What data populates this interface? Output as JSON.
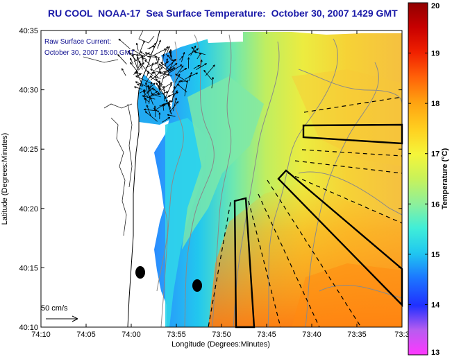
{
  "title": "RU COOL  NOAA-17  Sea Surface Temperature:  October 30, 2007 1429 GMT",
  "annotation": {
    "line1": "Raw Surface Current:",
    "line2": "October 30, 2007 15:00 GMT",
    "scale_label": "50 cm/s"
  },
  "axes": {
    "xlabel": "Longitude (Degrees:Minutes)",
    "ylabel": "Latitude (Degrees:Minutes)",
    "x_ticks": [
      "74:10",
      "74:05",
      "74:00",
      "73:55",
      "73:50",
      "73:45",
      "73:40",
      "73:35",
      "73:3"
    ],
    "y_ticks": [
      "40:35",
      "40:30",
      "40:25",
      "40:20",
      "40:15",
      "40:10"
    ]
  },
  "colorbar": {
    "label": "Temperature (°C)",
    "ticks": [
      "20",
      "19",
      "18",
      "17",
      "16",
      "15",
      "14",
      "13"
    ],
    "min": 13,
    "max": 20
  },
  "map": {
    "region": "New Jersey coast / New York Bight",
    "overlays": [
      "sea-surface-temperature",
      "surface-current-vectors",
      "bathymetry-contours",
      "sampling-boxes",
      "sampling-transects"
    ]
  }
}
